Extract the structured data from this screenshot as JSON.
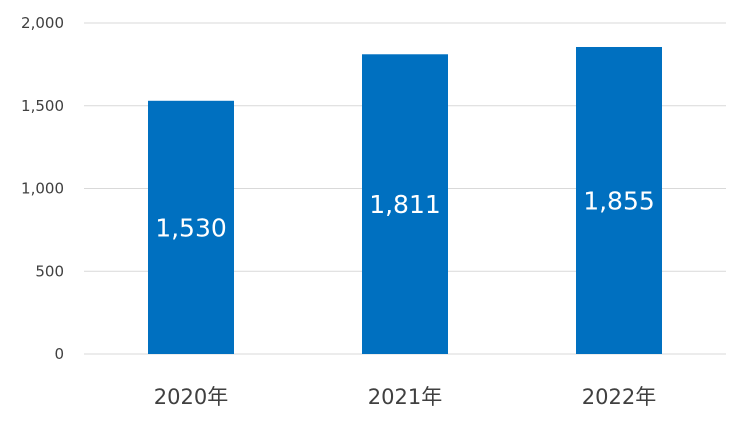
{
  "chart_data": {
    "type": "bar",
    "title": "",
    "xlabel": "",
    "ylabel": "",
    "categories": [
      "2020年",
      "2021年",
      "2022年"
    ],
    "values": [
      1530,
      1811,
      1855
    ],
    "data_labels": [
      "1,530",
      "1,811",
      "1,855"
    ],
    "y_ticks": [
      0,
      500,
      1000,
      1500,
      2000
    ],
    "y_tick_labels": [
      "0",
      "500",
      "1,000",
      "1,500",
      "2,000"
    ],
    "ylim": [
      0,
      2000
    ],
    "grid": true,
    "legend": "none",
    "colors": {
      "bar": "#0070C0",
      "grid": "#D9D9D9",
      "axis_text": "#404040",
      "data_label": "#FFFFFF"
    }
  }
}
